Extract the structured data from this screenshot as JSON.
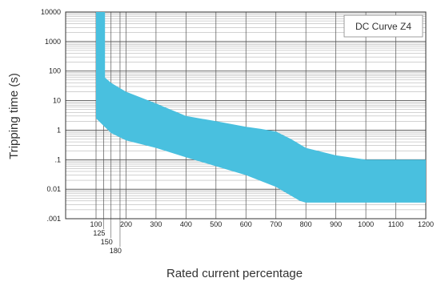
{
  "chart_data": {
    "type": "area",
    "title": "DC Curve Z4",
    "xlabel": "Rated current percentage",
    "ylabel": "Tripping time (s)",
    "xlim": [
      100,
      1200
    ],
    "ylim": [
      0.001,
      10000
    ],
    "yscale": "log",
    "grid": true,
    "band_color": "#49c0df",
    "x_ticks": [
      {
        "value": 100,
        "label": "100",
        "row": 0
      },
      {
        "value": 125,
        "label": "125",
        "row": 1
      },
      {
        "value": 150,
        "label": "150",
        "row": 2
      },
      {
        "value": 180,
        "label": "180",
        "row": 3
      },
      {
        "value": 200,
        "label": "200",
        "row": 0
      },
      {
        "value": 300,
        "label": "300",
        "row": 0
      },
      {
        "value": 400,
        "label": "400",
        "row": 0
      },
      {
        "value": 500,
        "label": "500",
        "row": 0
      },
      {
        "value": 600,
        "label": "600",
        "row": 0
      },
      {
        "value": 700,
        "label": "700",
        "row": 0
      },
      {
        "value": 800,
        "label": "800",
        "row": 0
      },
      {
        "value": 900,
        "label": "900",
        "row": 0
      },
      {
        "value": 1000,
        "label": "1000",
        "row": 0
      },
      {
        "value": 1100,
        "label": "1100",
        "row": 0
      },
      {
        "value": 1200,
        "label": "1200",
        "row": 0
      }
    ],
    "y_ticks": [
      {
        "value": 10000,
        "label": "10000"
      },
      {
        "value": 1000,
        "label": "1000"
      },
      {
        "value": 100,
        "label": "100"
      },
      {
        "value": 10,
        "label": "10"
      },
      {
        "value": 1,
        "label": "1"
      },
      {
        "value": 0.1,
        "label": ".1"
      },
      {
        "value": 0.01,
        "label": "0.01"
      },
      {
        "value": 0.001,
        "label": ".001"
      }
    ],
    "series": [
      {
        "upper": [
          [
            100,
            10000
          ],
          [
            130,
            10000
          ],
          [
            130,
            60
          ],
          [
            150,
            40
          ],
          [
            200,
            20
          ],
          [
            300,
            8
          ],
          [
            400,
            3
          ],
          [
            500,
            2
          ],
          [
            600,
            1.3
          ],
          [
            650,
            1.1
          ],
          [
            700,
            0.9
          ],
          [
            750,
            0.5
          ],
          [
            800,
            0.25
          ],
          [
            900,
            0.14
          ],
          [
            1000,
            0.1
          ],
          [
            1200,
            0.1
          ]
        ],
        "lower": [
          [
            100,
            2.5
          ],
          [
            150,
            0.8
          ],
          [
            200,
            0.45
          ],
          [
            300,
            0.25
          ],
          [
            400,
            0.12
          ],
          [
            500,
            0.06
          ],
          [
            600,
            0.03
          ],
          [
            700,
            0.012
          ],
          [
            780,
            0.004
          ],
          [
            800,
            0.0035
          ],
          [
            1200,
            0.0035
          ]
        ]
      }
    ]
  }
}
